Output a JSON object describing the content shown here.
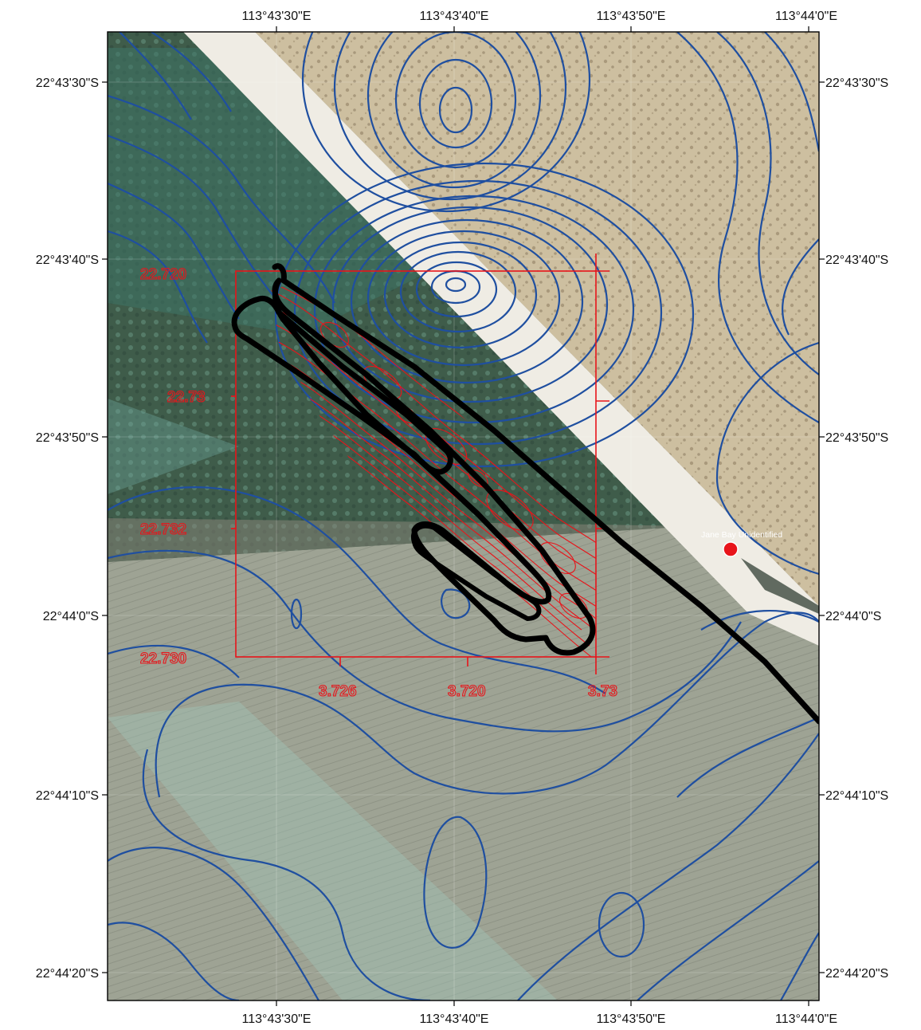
{
  "map": {
    "top_ticks": [
      "113°43'30\"E",
      "113°43'40\"E",
      "113°43'50\"E",
      "113°44'0\"E"
    ],
    "bottom_ticks": [
      "113°43'30\"E",
      "113°43'40\"E",
      "113°43'50\"E",
      "113°44'0\"E"
    ],
    "left_ticks": [
      "22°43'30\"S",
      "22°43'40\"S",
      "22°43'50\"S",
      "22°44'0\"S",
      "22°44'10\"S",
      "22°44'20\"S"
    ],
    "right_ticks": [
      "22°43'30\"S",
      "22°43'40\"S",
      "22°43'50\"S",
      "22°44'0\"S",
      "22°44'10\"S",
      "22°44'20\"S"
    ],
    "inset_y_labels": [
      "22.720",
      "22.73",
      "22.732",
      "22.730"
    ],
    "inset_x_labels": [
      "3.726",
      "3.720",
      "3.73"
    ],
    "site_label": "Jane Bay Unidentified",
    "colors": {
      "contour": "#1f4fa0",
      "survey_red": "#e8141a",
      "track": "#000000",
      "sand": "#cdbfa0",
      "reef": "#3c5a48",
      "water": "#9fa597",
      "site_marker": "#e8141a"
    }
  }
}
